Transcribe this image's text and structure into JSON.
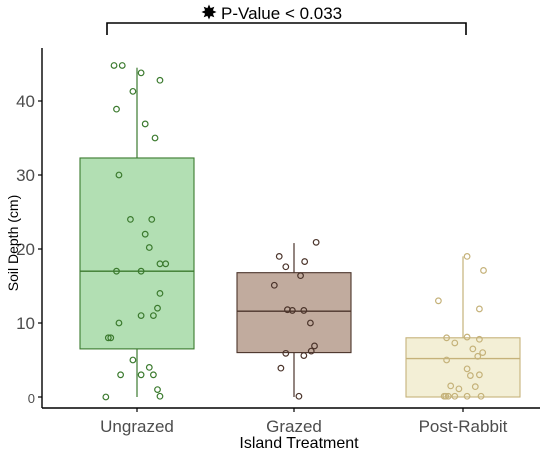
{
  "chart_data": {
    "type": "box",
    "xlabel": "Island Treatment",
    "ylabel": "Soil Depth (cm)",
    "ylim": [
      -1.5,
      48
    ],
    "yticks": [
      0,
      10,
      20,
      30,
      40
    ],
    "annotation": "P-Value < 0.033",
    "annotation_icon": "star-burst-icon",
    "categories": [
      "Ungrazed",
      "Grazed",
      "Post-Rabbit"
    ],
    "groups": [
      {
        "category": "Ungrazed",
        "fill": "#b2dfb3",
        "stroke": "#3b7a2e",
        "q1": 6.5,
        "median": 17,
        "q3": 32.3,
        "whisker_low": 0,
        "whisker_high": 44.5,
        "points": [
          [
            -0.28,
            44.8
          ],
          [
            -0.18,
            44.8
          ],
          [
            0.05,
            43.8
          ],
          [
            0.28,
            42.8
          ],
          [
            -0.05,
            41.3
          ],
          [
            -0.25,
            38.9
          ],
          [
            0.1,
            36.9
          ],
          [
            0.22,
            35
          ],
          [
            -0.22,
            30
          ],
          [
            -0.08,
            24
          ],
          [
            0.18,
            24
          ],
          [
            0.1,
            22
          ],
          [
            0.15,
            20.2
          ],
          [
            0.28,
            18
          ],
          [
            0.35,
            18
          ],
          [
            0.05,
            17
          ],
          [
            -0.25,
            17
          ],
          [
            0.28,
            14
          ],
          [
            0.25,
            12
          ],
          [
            0.05,
            11
          ],
          [
            0.2,
            11
          ],
          [
            -0.22,
            10
          ],
          [
            -0.35,
            8
          ],
          [
            -0.32,
            8
          ],
          [
            -0.05,
            5
          ],
          [
            0.15,
            4
          ],
          [
            0.2,
            3
          ],
          [
            -0.2,
            3
          ],
          [
            0.05,
            3
          ],
          [
            0.25,
            1
          ],
          [
            -0.38,
            0
          ],
          [
            0.28,
            0.1
          ]
        ]
      },
      {
        "category": "Grazed",
        "fill": "#c1ab9e",
        "stroke": "#4b342b",
        "q1": 6,
        "median": 11.6,
        "q3": 16.8,
        "whisker_low": 0,
        "whisker_high": 20.8,
        "points": [
          [
            0.27,
            20.9
          ],
          [
            -0.18,
            19
          ],
          [
            0.13,
            18.3
          ],
          [
            -0.1,
            17.6
          ],
          [
            0.08,
            16.4
          ],
          [
            -0.24,
            15.1
          ],
          [
            -0.08,
            11.8
          ],
          [
            0.12,
            11.7
          ],
          [
            -0.02,
            11.7
          ],
          [
            0.2,
            10
          ],
          [
            0.25,
            6.9
          ],
          [
            0.21,
            6.2
          ],
          [
            -0.1,
            5.9
          ],
          [
            0.12,
            5.6
          ],
          [
            -0.16,
            3.9
          ],
          [
            0.06,
            0.1
          ]
        ]
      },
      {
        "category": "Post-Rabbit",
        "fill": "#f3efd6",
        "stroke": "#c5b27a",
        "q1": 0,
        "median": 5.2,
        "q3": 8,
        "whisker_low": 0,
        "whisker_high": 19,
        "points": [
          [
            0.05,
            19
          ],
          [
            0.25,
            17.1
          ],
          [
            -0.3,
            13
          ],
          [
            0.2,
            11.9
          ],
          [
            -0.2,
            8
          ],
          [
            0.05,
            8.1
          ],
          [
            0.2,
            7.8
          ],
          [
            -0.1,
            7.3
          ],
          [
            0.12,
            6.5
          ],
          [
            0.24,
            6
          ],
          [
            0.18,
            5.5
          ],
          [
            -0.2,
            5
          ],
          [
            0.05,
            3.8
          ],
          [
            0.2,
            3
          ],
          [
            0.09,
            2.9
          ],
          [
            -0.15,
            1.5
          ],
          [
            0.15,
            1.4
          ],
          [
            -0.05,
            1.1
          ],
          [
            -0.23,
            0.1
          ],
          [
            -0.21,
            0.1
          ],
          [
            -0.18,
            0.1
          ],
          [
            -0.1,
            0.1
          ],
          [
            0.05,
            0.1
          ],
          [
            0.22,
            0.1
          ]
        ]
      }
    ]
  }
}
